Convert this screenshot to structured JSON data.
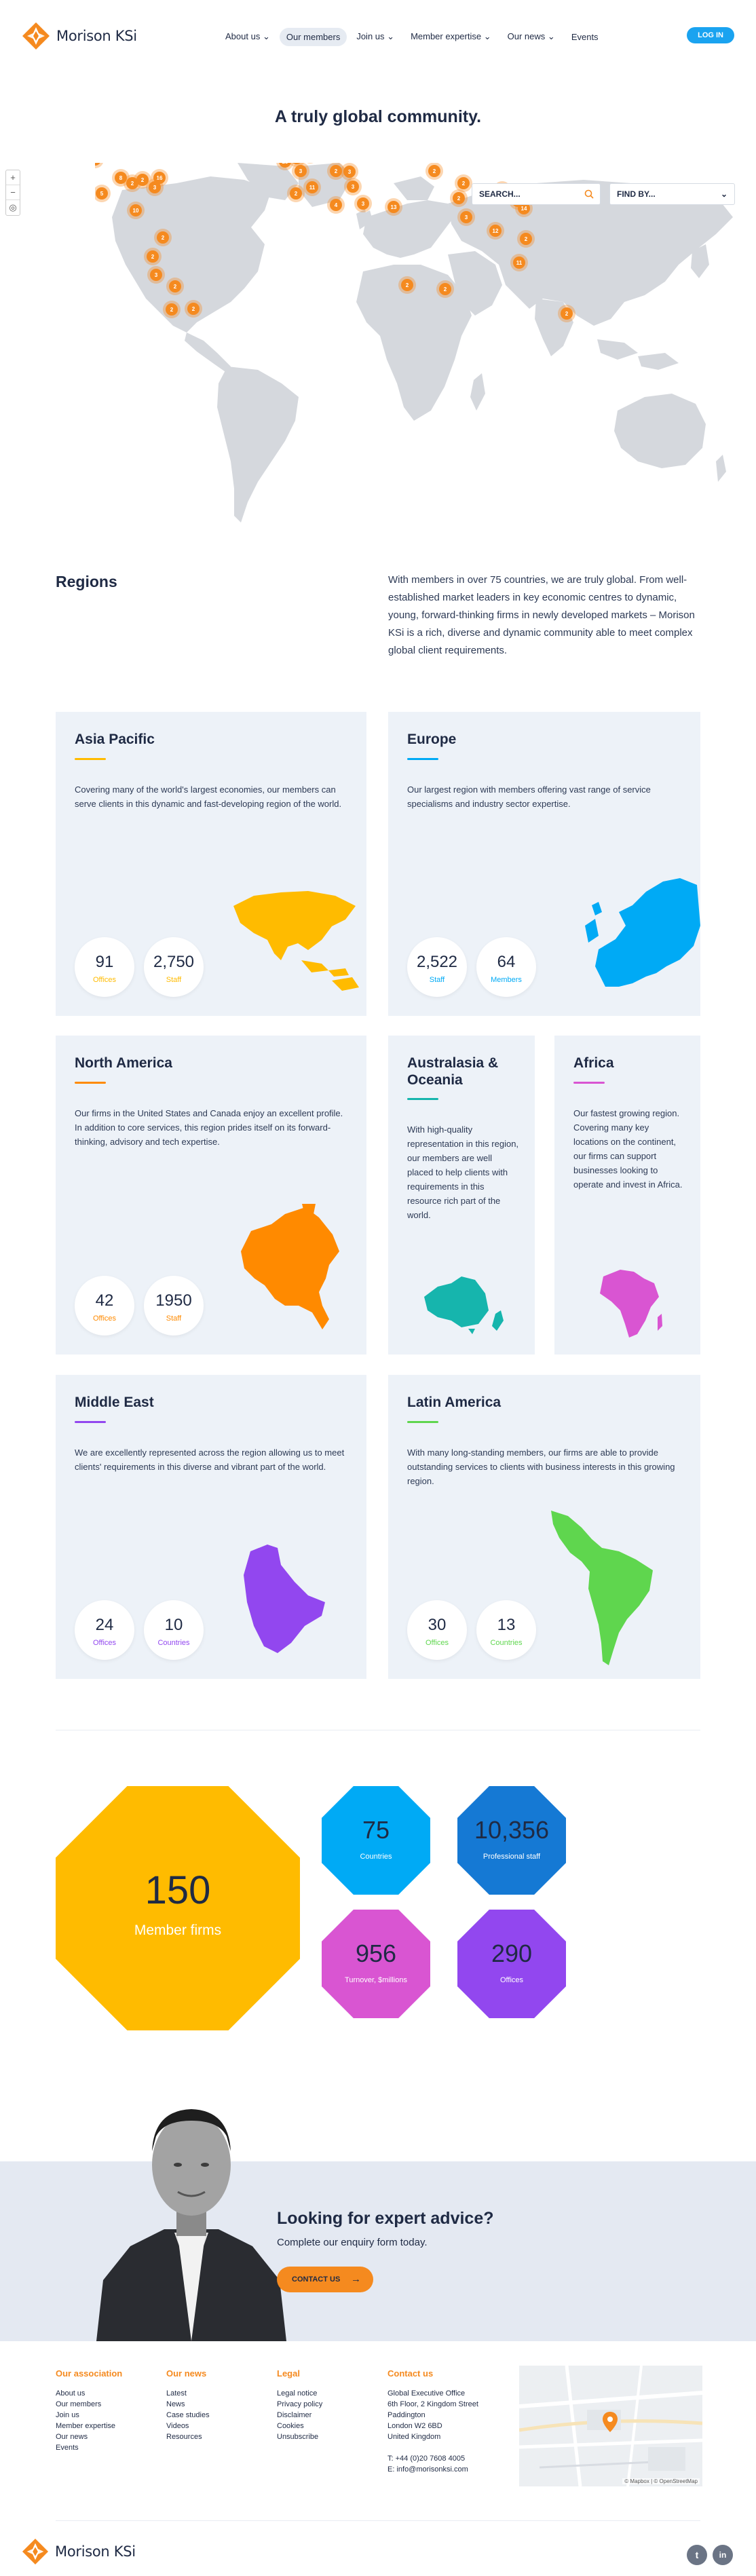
{
  "brand": {
    "name": "Morison KSi",
    "accent": "#f58a1f",
    "blue": "#1aa3f0",
    "navy": "#1f2a44"
  },
  "nav": {
    "items": [
      {
        "label": "About us",
        "has_dropdown": true
      },
      {
        "label": "Our members",
        "has_dropdown": false,
        "active": true
      },
      {
        "label": "Join us",
        "has_dropdown": true
      },
      {
        "label": "Member expertise",
        "has_dropdown": true
      },
      {
        "label": "Our news",
        "has_dropdown": true
      },
      {
        "label": "Events",
        "has_dropdown": false
      }
    ],
    "login_label": "LOG IN"
  },
  "hero": {
    "title": "A truly global community.",
    "search_placeholder": "SEARCH...",
    "findby_label": "FIND BY...",
    "zoom_in": "+",
    "zoom_out": "−",
    "map_markers": [
      {
        "count": "6"
      },
      {
        "count": "8"
      },
      {
        "count": "2"
      },
      {
        "count": "2"
      },
      {
        "count": "16"
      },
      {
        "count": "3"
      },
      {
        "count": "5"
      },
      {
        "count": "10"
      },
      {
        "count": "2"
      },
      {
        "count": "2"
      },
      {
        "count": "3"
      },
      {
        "count": "2"
      },
      {
        "count": "2"
      },
      {
        "count": "2"
      },
      {
        "count": "23"
      },
      {
        "count": "15"
      },
      {
        "count": "3"
      },
      {
        "count": "2"
      },
      {
        "count": "11"
      },
      {
        "count": "2"
      },
      {
        "count": "5"
      },
      {
        "count": "2"
      },
      {
        "count": "3"
      },
      {
        "count": "3"
      },
      {
        "count": "4"
      },
      {
        "count": "3"
      },
      {
        "count": "13"
      },
      {
        "count": "2"
      },
      {
        "count": "2"
      },
      {
        "count": "2"
      },
      {
        "count": "3"
      },
      {
        "count": "2"
      },
      {
        "count": "3"
      },
      {
        "count": "14"
      },
      {
        "count": "12"
      },
      {
        "count": "2"
      },
      {
        "count": "11"
      },
      {
        "count": "2"
      },
      {
        "count": "2"
      },
      {
        "count": "2"
      }
    ]
  },
  "regions": {
    "title": "Regions",
    "intro": "With members in over 75 countries, we are truly global. From well-established market leaders in key economic centres to dynamic, young, forward-thinking firms in newly developed markets – Morison KSi is a rich, diverse and dynamic community able to meet complex global client requirements.",
    "cards": {
      "asia": {
        "title": "Asia Pacific",
        "color": "#ffbb00",
        "desc": "Covering many of the world's largest economies, our members can serve clients in this dynamic and fast-developing region of the world.",
        "stat1_value": "91",
        "stat1_label": "Offices",
        "stat2_value": "2,750",
        "stat2_label": "Staff"
      },
      "europe": {
        "title": "Europe",
        "color": "#00aaf5",
        "desc": "Our largest region with members offering vast range of service specialisms and industry sector expertise.",
        "stat1_value": "2,522",
        "stat1_label": "Staff",
        "stat2_value": "64",
        "stat2_label": "Members"
      },
      "north_america": {
        "title": "North America",
        "color": "#ff8a00",
        "desc": "Our firms in the United States and Canada enjoy an excellent profile. In addition to core services, this region prides itself on its forward-thinking, advisory and tech expertise.",
        "stat1_value": "42",
        "stat1_label": "Offices",
        "stat2_value": "1950",
        "stat2_label": "Staff"
      },
      "australasia": {
        "title": "Australasia & Oceania",
        "color": "#16b5ad",
        "desc": "With high-quality representation in this region, our members are well placed to help clients with requirements in this resource rich part of the world."
      },
      "africa": {
        "title": "Africa",
        "color": "#d955d2",
        "desc": "Our fastest growing region. Covering many key locations on the continent, our firms can support businesses looking to operate and invest in Africa."
      },
      "middle_east": {
        "title": "Middle East",
        "color": "#9247ef",
        "desc": "We are excellently represented across the region allowing us to meet clients' requirements in this diverse and vibrant part of the world.",
        "stat1_value": "24",
        "stat1_label": "Offices",
        "stat2_value": "10",
        "stat2_label": "Countries"
      },
      "latin_america": {
        "title": "Latin America",
        "color": "#5fd64e",
        "desc": "With many long-standing members, our firms are able to provide outstanding services to clients with business interests in this growing region.",
        "stat1_value": "30",
        "stat1_label": "Offices",
        "stat2_value": "13",
        "stat2_label": "Countries"
      }
    }
  },
  "stats": {
    "member_firms": {
      "value": "150",
      "label": "Member firms",
      "color": "#ffbb00"
    },
    "countries": {
      "value": "75",
      "label": "Countries",
      "color": "#00aaf5"
    },
    "staff": {
      "value": "10,356",
      "label": "Professional staff",
      "color": "#1579d4"
    },
    "turnover": {
      "value": "956",
      "label": "Turnover, $millions",
      "color": "#d955d2"
    },
    "offices": {
      "value": "290",
      "label": "Offices",
      "color": "#9247ef"
    }
  },
  "cta": {
    "title": "Looking for expert advice?",
    "subtitle": "Complete our enquiry form today.",
    "button_label": "CONTACT US"
  },
  "footer": {
    "association": {
      "heading": "Our association",
      "links": [
        "About us",
        "Our members",
        "Join us",
        "Member expertise",
        "Our news",
        "Events"
      ]
    },
    "news": {
      "heading": "Our news",
      "links": [
        "Latest",
        "News",
        "Case studies",
        "Videos",
        "Resources"
      ]
    },
    "legal": {
      "heading": "Legal",
      "links": [
        "Legal notice",
        "Privacy policy",
        "Disclaimer",
        "Cookies",
        "Unsubscribe"
      ]
    },
    "contact": {
      "heading": "Contact us",
      "address": [
        "Global Executive Office",
        "6th Floor, 2 Kingdom Street",
        "Paddington",
        "London W2 6BD",
        "United Kingdom"
      ],
      "phone": "T:  +44 (0)20 7608 4005",
      "email": "E:  info@morisonksi.com"
    },
    "map_credit": "© Mapbox | © OpenStreetMap",
    "social": {
      "twitter": "t",
      "linkedin": "in"
    }
  }
}
